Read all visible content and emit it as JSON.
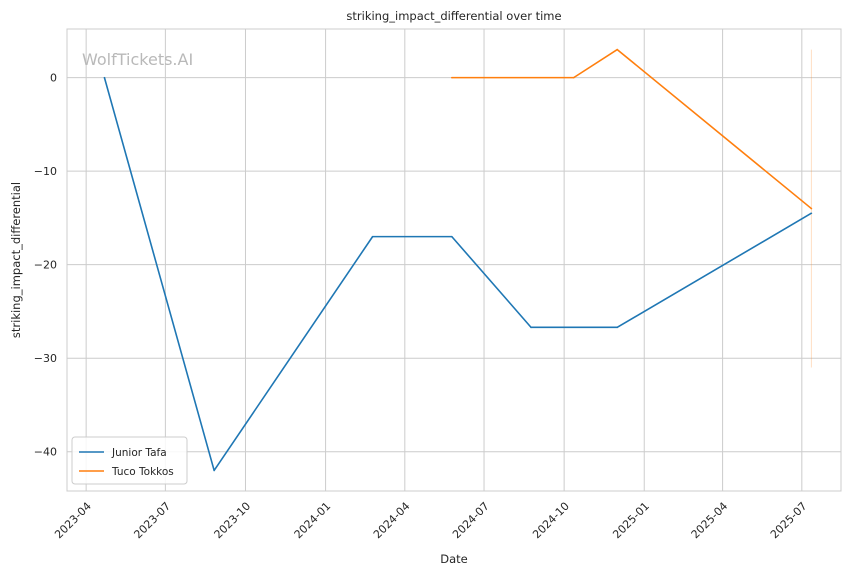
{
  "chart_data": {
    "type": "line",
    "title": "striking_impact_differential over time",
    "xlabel": "Date",
    "ylabel": "striking_impact_differential",
    "watermark": "WolfTickets.AI",
    "x_axis_kind": "date",
    "xlim": [
      "2023-03-10",
      "2025-08-15"
    ],
    "ylim": [
      -44.2,
      5.2
    ],
    "x_ticks": [
      "2023-04-01",
      "2023-07-01",
      "2023-10-01",
      "2024-01-01",
      "2024-04-01",
      "2024-07-01",
      "2024-10-01",
      "2025-01-01",
      "2025-04-01",
      "2025-07-01"
    ],
    "x_tick_labels": [
      "2023-04",
      "2023-07",
      "2023-10",
      "2024-01",
      "2024-04",
      "2024-07",
      "2024-10",
      "2025-01",
      "2025-04",
      "2025-07"
    ],
    "y_ticks": [
      0,
      -10,
      -20,
      -30,
      -40
    ],
    "y_tick_labels": [
      "0",
      "−10",
      "−20",
      "−30",
      "−40"
    ],
    "grid": true,
    "legend_position": "lower-left",
    "series": [
      {
        "name": "Junior Tafa",
        "color": "#1f77b4",
        "points": [
          {
            "x": "2023-04-22",
            "y": 0
          },
          {
            "x": "2023-08-26",
            "y": -42
          },
          {
            "x": "2024-02-24",
            "y": -17
          },
          {
            "x": "2024-05-25",
            "y": -17
          },
          {
            "x": "2024-08-24",
            "y": -26.7
          },
          {
            "x": "2024-12-01",
            "y": -26.7
          },
          {
            "x": "2025-07-12",
            "y": -14.5
          }
        ]
      },
      {
        "name": "Tuco Tokkos",
        "color": "#ff7f0e",
        "points": [
          {
            "x": "2024-05-25",
            "y": 0
          },
          {
            "x": "2024-10-12",
            "y": 0
          },
          {
            "x": "2024-12-01",
            "y": 3
          },
          {
            "x": "2025-07-12",
            "y": -14
          }
        ]
      }
    ],
    "error_bar": {
      "series": "Tuco Tokkos",
      "x": "2025-07-12",
      "y_range": [
        -31,
        3
      ],
      "color": "#ff7f0e"
    }
  }
}
